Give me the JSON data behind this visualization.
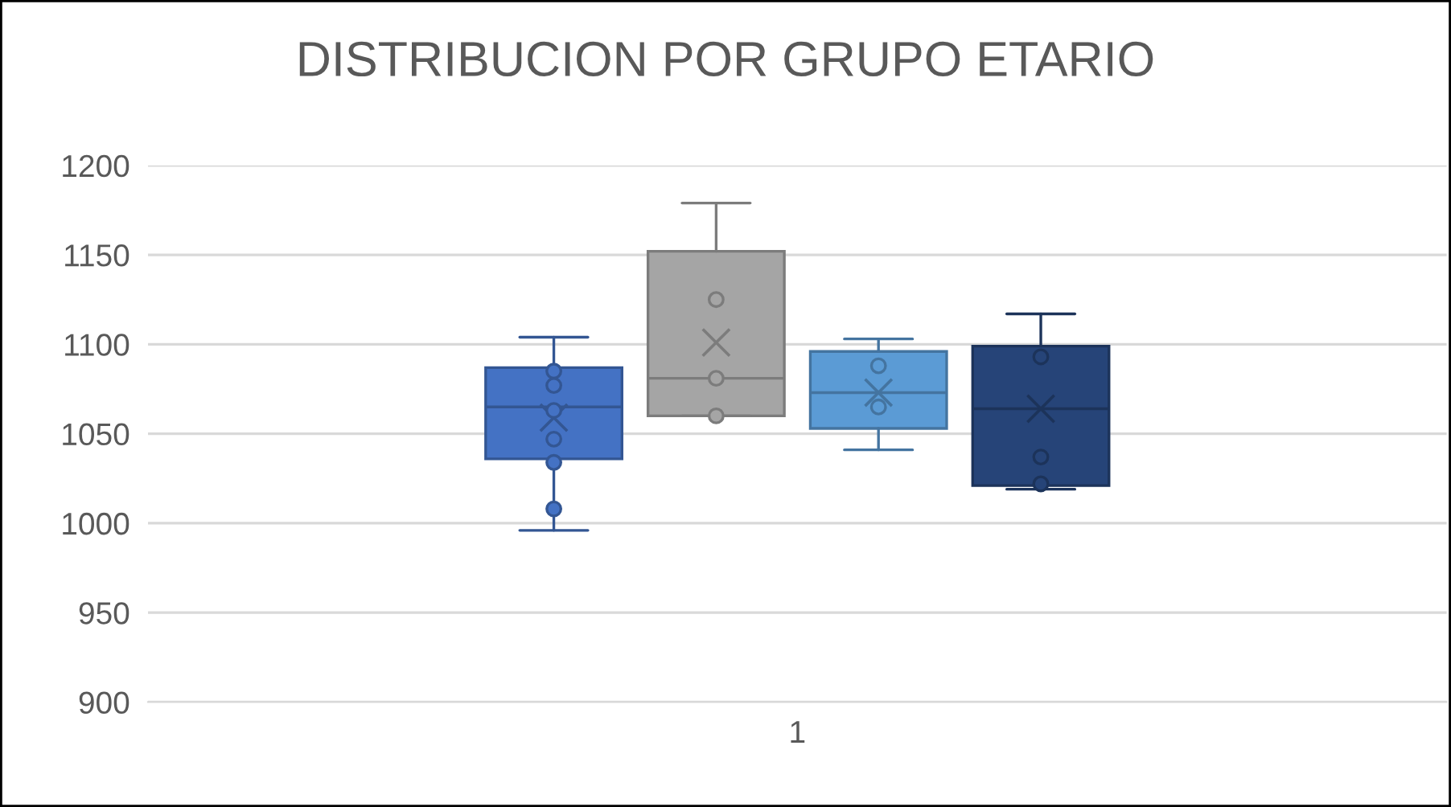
{
  "chart_data": {
    "type": "box",
    "title": "DISTRIBUCION POR GRUPO ETARIO",
    "categories": [
      "1"
    ],
    "ylim": [
      900,
      1200
    ],
    "yticks": [
      900,
      950,
      1000,
      1050,
      1100,
      1150,
      1200
    ],
    "grid": "y",
    "legend": false,
    "series": [
      {
        "color": "#4472c4",
        "boxes": [
          {
            "low": 996,
            "q1": 1036,
            "median": 1065,
            "q3": 1087,
            "high": 1104,
            "mean": 1059
          }
        ]
      },
      {
        "color": "#a5a5a5",
        "boxes": [
          {
            "low": 1060,
            "q1": 1060,
            "median": 1081,
            "q3": 1152,
            "high": 1179,
            "mean": 1101
          }
        ]
      },
      {
        "color": "#5b9bd5",
        "boxes": [
          {
            "low": 1041,
            "q1": 1053,
            "median": 1073,
            "q3": 1096,
            "high": 1103,
            "mean": 1073
          }
        ]
      },
      {
        "color": "#264478",
        "boxes": [
          {
            "low": 1019,
            "q1": 1021,
            "median": 1064,
            "q3": 1099,
            "high": 1117,
            "mean": 1064
          }
        ]
      },
      {
        "type": "scatter",
        "color": "#4472c4",
        "x": [
          "1",
          "1",
          "1",
          "1",
          "1",
          "1"
        ],
        "values": [
          1085,
          1077,
          1063,
          1047,
          1034,
          1008
        ]
      },
      {
        "type": "scatter",
        "color": "#a5a5a5",
        "x": [
          "1",
          "1",
          "1"
        ],
        "values": [
          1125,
          1081,
          1060
        ]
      },
      {
        "type": "scatter",
        "color": "#5b9bd5",
        "x": [
          "1",
          "1"
        ],
        "values": [
          1088,
          1065
        ]
      },
      {
        "type": "scatter",
        "color": "#264478",
        "x": [
          "1",
          "1",
          "1"
        ],
        "values": [
          1093,
          1037,
          1022
        ]
      }
    ]
  }
}
